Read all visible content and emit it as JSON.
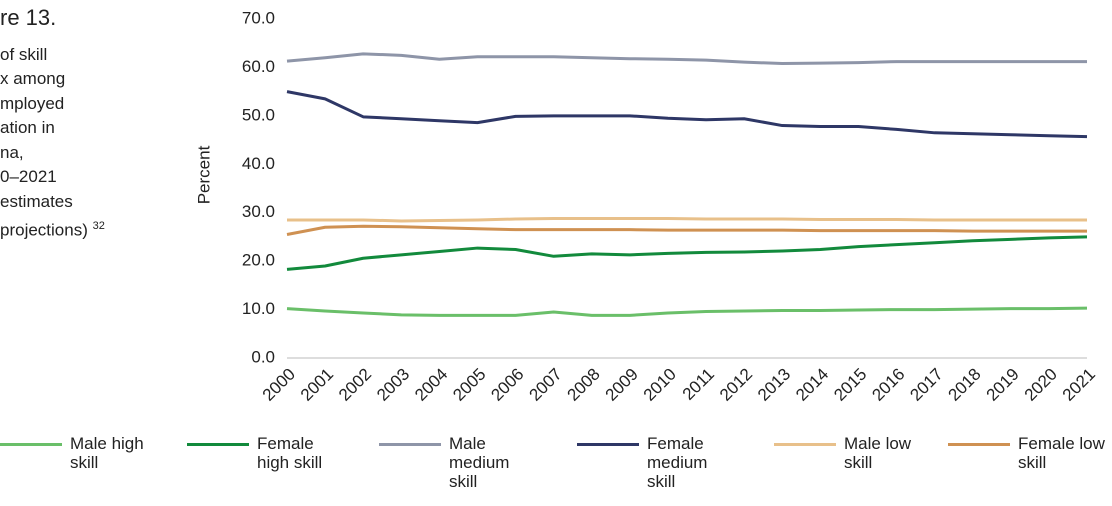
{
  "caption": [
    "re 13.",
    "of skill",
    "x among",
    "mployed",
    "ation in",
    "na,",
    "0–2021",
    "estimates",
    "projections)"
  ],
  "footnote": "32",
  "chart_data": {
    "type": "line",
    "y_label": "Percent",
    "categories": [
      "2000",
      "2001",
      "2002",
      "2003",
      "2004",
      "2005",
      "2006",
      "2007",
      "2008",
      "2009",
      "2010",
      "2011",
      "2012",
      "2013",
      "2014",
      "2015",
      "2016",
      "2017",
      "2018",
      "2019",
      "2020",
      "2021"
    ],
    "ylim": [
      0,
      70
    ],
    "yticks": [
      {
        "value": 0,
        "label": "0.0"
      },
      {
        "value": 10,
        "label": "10.0"
      },
      {
        "value": 20,
        "label": "20.0"
      },
      {
        "value": 30,
        "label": "30.0"
      },
      {
        "value": 40,
        "label": "40.0"
      },
      {
        "value": 50,
        "label": "50.0"
      },
      {
        "value": 60,
        "label": "60.0"
      },
      {
        "value": 70,
        "label": "70.0"
      }
    ],
    "grid": false,
    "legend": "bottom",
    "series": [
      {
        "name": "Male high skill",
        "color": "#6abf69",
        "values": [
          10.2,
          9.7,
          9.3,
          8.9,
          8.8,
          8.8,
          8.8,
          9.5,
          8.8,
          8.8,
          9.3,
          9.6,
          9.7,
          9.8,
          9.8,
          9.9,
          10.0,
          10.0,
          10.1,
          10.2,
          10.2,
          10.3
        ]
      },
      {
        "name": "Female high skill",
        "color": "#128a3c",
        "values": [
          18.3,
          19.0,
          20.6,
          21.3,
          22.0,
          22.7,
          22.4,
          21.0,
          21.5,
          21.3,
          21.6,
          21.8,
          21.9,
          22.1,
          22.4,
          23.0,
          23.4,
          23.8,
          24.2,
          24.5,
          24.8,
          25.0
        ]
      },
      {
        "name": "Male medium skill",
        "color": "#8e95a8",
        "values": [
          61.3,
          62.0,
          62.8,
          62.5,
          61.7,
          62.2,
          62.2,
          62.2,
          62.0,
          61.8,
          61.7,
          61.5,
          61.1,
          60.8,
          60.9,
          61.0,
          61.2,
          61.2,
          61.2,
          61.2,
          61.2,
          61.2
        ]
      },
      {
        "name": "Female medium skill",
        "color": "#2e3766",
        "values": [
          55.0,
          53.5,
          49.8,
          49.4,
          49.0,
          48.6,
          49.9,
          50.0,
          50.0,
          50.0,
          49.5,
          49.2,
          49.4,
          48.0,
          47.8,
          47.8,
          47.2,
          46.5,
          46.3,
          46.1,
          45.9,
          45.7
        ]
      },
      {
        "name": "Male low skill",
        "color": "#e8c08a",
        "values": [
          28.5,
          28.5,
          28.5,
          28.3,
          28.4,
          28.5,
          28.7,
          28.8,
          28.8,
          28.8,
          28.8,
          28.7,
          28.7,
          28.7,
          28.6,
          28.6,
          28.6,
          28.5,
          28.5,
          28.5,
          28.5,
          28.5
        ]
      },
      {
        "name": "Female low skill",
        "color": "#cf9152",
        "values": [
          25.5,
          27.0,
          27.2,
          27.1,
          26.9,
          26.7,
          26.5,
          26.5,
          26.5,
          26.5,
          26.4,
          26.4,
          26.4,
          26.4,
          26.3,
          26.3,
          26.3,
          26.3,
          26.2,
          26.2,
          26.2,
          26.2
        ]
      }
    ]
  }
}
